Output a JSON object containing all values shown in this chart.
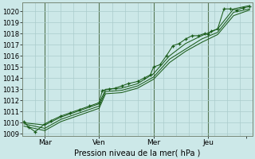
{
  "title": "Pression niveau de la mer( hPa )",
  "ylim": [
    1008.8,
    1020.8
  ],
  "xlim": [
    0.0,
    7.2
  ],
  "background_color": "#cce8e8",
  "grid_color": "#aacccc",
  "line_color": "#1a5c1a",
  "xtick_positions": [
    0.7,
    2.4,
    4.1,
    5.8,
    7.0
  ],
  "xtick_labels": [
    "Mar",
    "Ven",
    "Mer",
    "Jeu",
    ""
  ],
  "vline_positions": [
    0.7,
    2.4,
    4.1,
    5.8
  ],
  "series_main": [
    [
      0.05,
      1010.1
    ],
    [
      0.2,
      1009.6
    ],
    [
      0.4,
      1009.2
    ],
    [
      0.7,
      1009.9
    ],
    [
      0.9,
      1010.2
    ],
    [
      1.2,
      1010.6
    ],
    [
      1.5,
      1010.9
    ],
    [
      1.8,
      1011.2
    ],
    [
      2.1,
      1011.5
    ],
    [
      2.4,
      1011.8
    ],
    [
      2.5,
      1012.9
    ],
    [
      2.7,
      1013.0
    ],
    [
      2.9,
      1013.1
    ],
    [
      3.1,
      1013.3
    ],
    [
      3.3,
      1013.5
    ],
    [
      3.6,
      1013.7
    ],
    [
      3.8,
      1014.0
    ],
    [
      4.0,
      1014.3
    ],
    [
      4.1,
      1015.0
    ],
    [
      4.3,
      1015.2
    ],
    [
      4.5,
      1016.0
    ],
    [
      4.7,
      1016.9
    ],
    [
      4.9,
      1017.1
    ],
    [
      5.1,
      1017.5
    ],
    [
      5.3,
      1017.8
    ],
    [
      5.5,
      1017.8
    ],
    [
      5.7,
      1018.0
    ],
    [
      5.8,
      1017.9
    ],
    [
      5.9,
      1018.2
    ],
    [
      6.1,
      1018.4
    ],
    [
      6.3,
      1020.2
    ],
    [
      6.5,
      1020.2
    ],
    [
      6.7,
      1020.1
    ],
    [
      6.9,
      1020.3
    ],
    [
      7.1,
      1020.4
    ]
  ],
  "series2": [
    [
      0.05,
      1010.0
    ],
    [
      0.7,
      1009.8
    ],
    [
      1.2,
      1010.5
    ],
    [
      1.8,
      1011.1
    ],
    [
      2.4,
      1011.7
    ],
    [
      2.6,
      1013.0
    ],
    [
      3.1,
      1013.1
    ],
    [
      3.6,
      1013.5
    ],
    [
      4.1,
      1014.4
    ],
    [
      4.6,
      1016.0
    ],
    [
      5.1,
      1017.1
    ],
    [
      5.6,
      1017.8
    ],
    [
      6.1,
      1018.4
    ],
    [
      6.6,
      1020.2
    ],
    [
      7.1,
      1020.5
    ]
  ],
  "series3": [
    [
      0.05,
      1009.9
    ],
    [
      0.7,
      1009.5
    ],
    [
      1.2,
      1010.3
    ],
    [
      1.8,
      1010.9
    ],
    [
      2.4,
      1011.5
    ],
    [
      2.6,
      1012.8
    ],
    [
      3.1,
      1012.9
    ],
    [
      3.6,
      1013.3
    ],
    [
      4.1,
      1014.1
    ],
    [
      4.6,
      1015.7
    ],
    [
      5.1,
      1016.6
    ],
    [
      5.6,
      1017.5
    ],
    [
      6.1,
      1018.1
    ],
    [
      6.6,
      1019.9
    ],
    [
      7.1,
      1020.2
    ]
  ],
  "series4": [
    [
      0.05,
      1009.7
    ],
    [
      0.7,
      1009.3
    ],
    [
      1.2,
      1010.1
    ],
    [
      1.8,
      1010.7
    ],
    [
      2.4,
      1011.3
    ],
    [
      2.6,
      1012.6
    ],
    [
      3.1,
      1012.7
    ],
    [
      3.6,
      1013.1
    ],
    [
      4.1,
      1013.9
    ],
    [
      4.6,
      1015.4
    ],
    [
      5.1,
      1016.4
    ],
    [
      5.6,
      1017.2
    ],
    [
      6.1,
      1017.9
    ],
    [
      6.6,
      1019.6
    ],
    [
      7.1,
      1020.1
    ]
  ]
}
